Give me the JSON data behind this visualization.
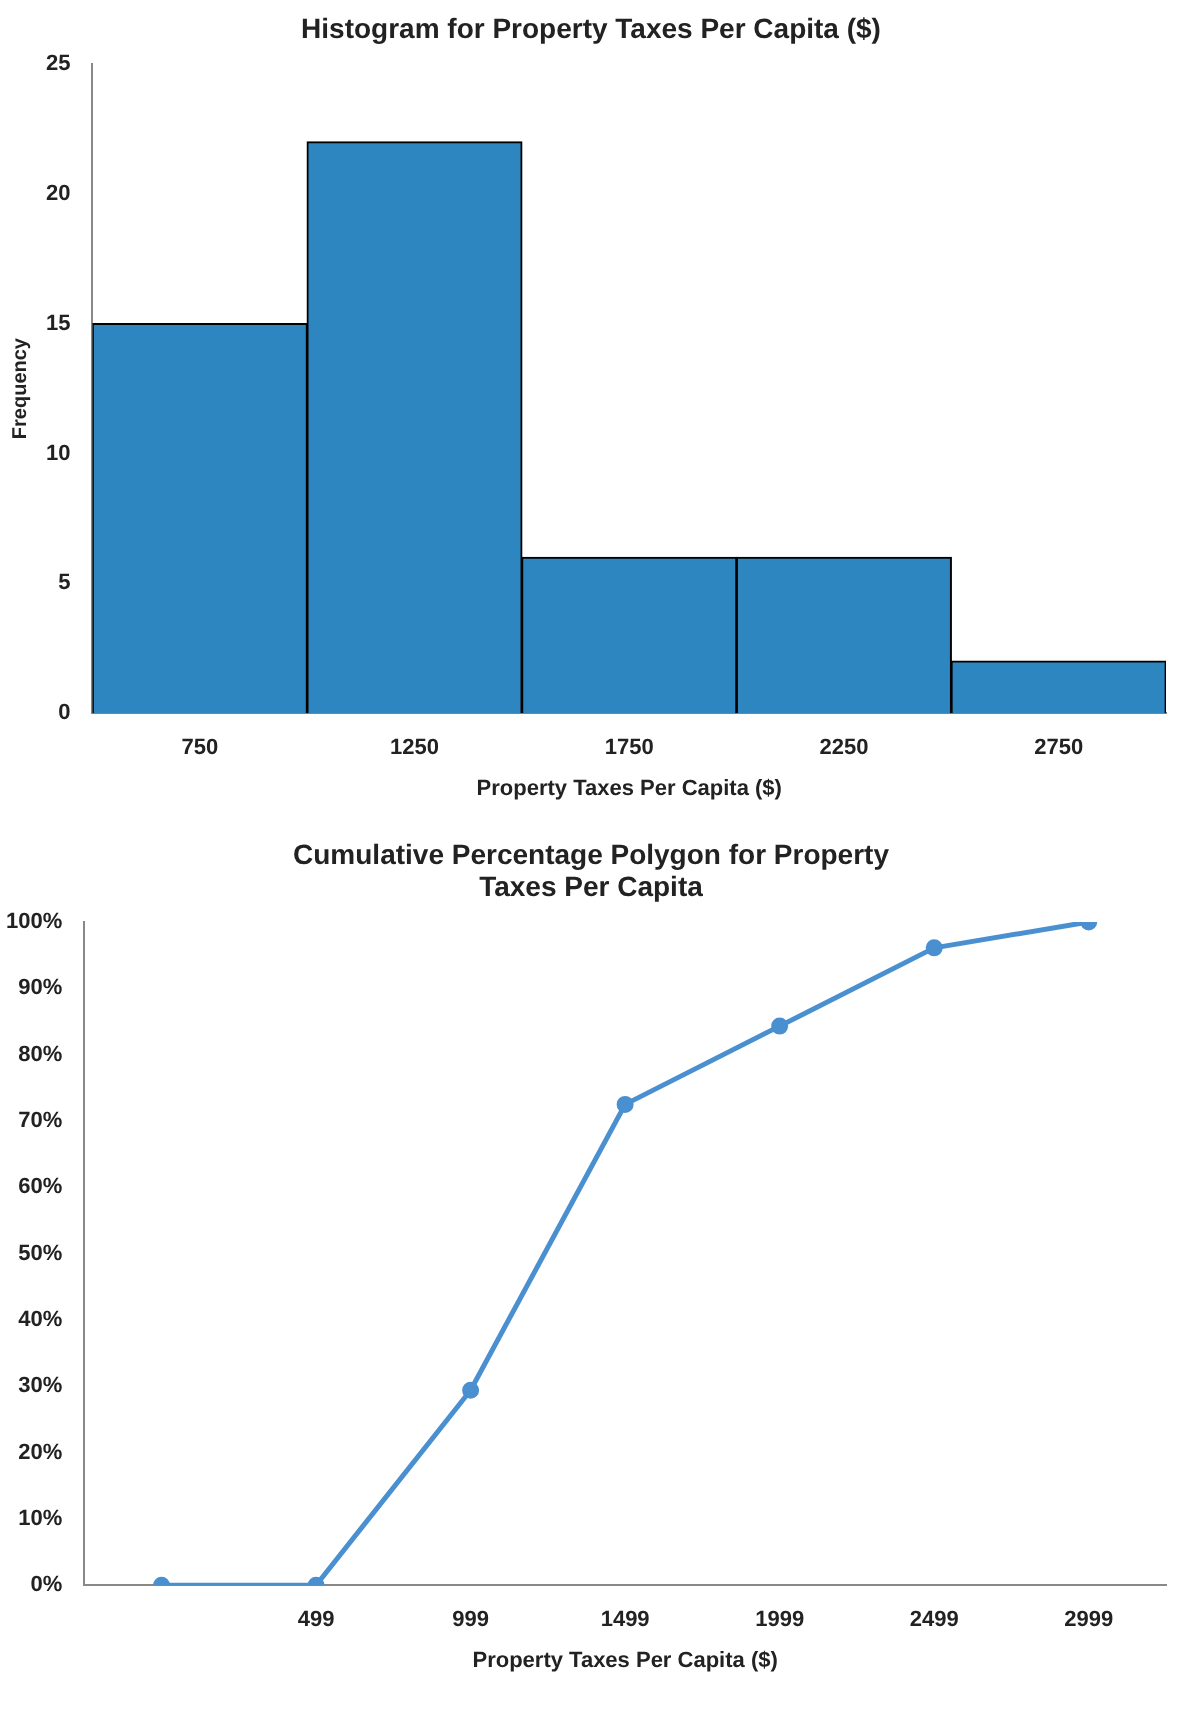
{
  "chart_data": [
    {
      "type": "bar",
      "title": "Histogram for Property Taxes Per Capita ($)",
      "xlabel": "Property Taxes Per Capita ($)",
      "ylabel": "Frequency",
      "categories": [
        "750",
        "1250",
        "1750",
        "2250",
        "2750"
      ],
      "values": [
        15,
        22,
        6,
        6,
        2
      ],
      "color": "#2e86c1",
      "ylim": [
        0,
        25
      ],
      "yticks": [
        0,
        5,
        10,
        15,
        20,
        25
      ]
    },
    {
      "type": "line",
      "title": "Cumulative Percentage Polygon for Property Taxes Per Capita",
      "xlabel": "Property Taxes Per Capita ($)",
      "categories": [
        null,
        "499",
        "999",
        "1499",
        "1999",
        "2499",
        "2999"
      ],
      "values": [
        0,
        0,
        29.4,
        72.5,
        84.3,
        96.1,
        100
      ],
      "color": "#4a90d0",
      "marker": "circle",
      "ylim": [
        0,
        100
      ],
      "yticks": [
        {
          "value": 0,
          "label": "0%"
        },
        {
          "value": 10,
          "label": "10%"
        },
        {
          "value": 20,
          "label": "20%"
        },
        {
          "value": 30,
          "label": "30%"
        },
        {
          "value": 40,
          "label": "40%"
        },
        {
          "value": 50,
          "label": "50%"
        },
        {
          "value": 60,
          "label": "60%"
        },
        {
          "value": 70,
          "label": "70%"
        },
        {
          "value": 80,
          "label": "80%"
        },
        {
          "value": 90,
          "label": "90%"
        },
        {
          "value": 100,
          "label": "100%"
        }
      ]
    }
  ]
}
